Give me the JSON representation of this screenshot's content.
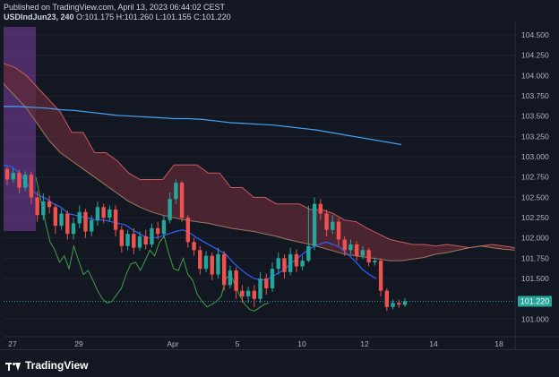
{
  "header": {
    "published": "Published on TradingView.com, April 13, 2023 06:44:02 CEST",
    "symbol": "USDIndJun23, 240",
    "ohlc": "O:101.175 H:101.260 L:101.155 C:101.220"
  },
  "footer": {
    "logo_text": "TradingView"
  },
  "colors": {
    "background": "#131722",
    "up": "#26a69a",
    "down": "#ef5350",
    "cloud_bear": "#5d2a35",
    "cloud_bull": "#1f4a45",
    "lagging_span": "#43a047",
    "conversion_line": "#2962ff",
    "ma_line": "#42a5f5",
    "highlight": "#7b3fa0"
  },
  "chart_data": {
    "type": "candlestick",
    "ylim": [
      100.85,
      104.6
    ],
    "y_ticks": [
      "104.500",
      "104.250",
      "104.000",
      "103.750",
      "103.500",
      "103.250",
      "103.000",
      "102.750",
      "102.500",
      "102.250",
      "102.000",
      "101.750",
      "101.500",
      "101.220",
      "101.000"
    ],
    "x_ticks": [
      "27",
      "29",
      "Apr",
      "5",
      "10",
      "12",
      "14",
      "18"
    ],
    "price_label": "101.220",
    "last_price": 101.22,
    "candles": [
      [
        102.85,
        102.72,
        102.88,
        102.65
      ],
      [
        102.72,
        102.8,
        102.86,
        102.68
      ],
      [
        102.8,
        102.62,
        102.84,
        102.55
      ],
      [
        102.62,
        102.78,
        102.82,
        102.58
      ],
      [
        102.78,
        102.5,
        102.82,
        102.42
      ],
      [
        102.5,
        102.28,
        102.58,
        102.2
      ],
      [
        102.28,
        102.45,
        102.55,
        102.22
      ],
      [
        102.45,
        102.38,
        102.52,
        102.3
      ],
      [
        102.38,
        102.15,
        102.42,
        102.05
      ],
      [
        102.15,
        102.3,
        102.36,
        102.1
      ],
      [
        102.3,
        102.05,
        102.34,
        101.98
      ],
      [
        102.05,
        102.18,
        102.25,
        101.98
      ],
      [
        102.18,
        102.32,
        102.4,
        102.12
      ],
      [
        102.32,
        102.08,
        102.36,
        102.0
      ],
      [
        102.08,
        102.22,
        102.28,
        102.02
      ],
      [
        102.22,
        102.38,
        102.45,
        102.15
      ],
      [
        102.38,
        102.25,
        102.42,
        102.18
      ],
      [
        102.25,
        102.35,
        102.4,
        102.2
      ],
      [
        102.35,
        102.1,
        102.4,
        102.02
      ],
      [
        102.1,
        101.9,
        102.15,
        101.82
      ],
      [
        101.9,
        102.05,
        102.1,
        101.85
      ],
      [
        102.05,
        101.88,
        102.12,
        101.8
      ],
      [
        101.88,
        102.02,
        102.08,
        101.84
      ],
      [
        102.02,
        101.92,
        102.1,
        101.86
      ],
      [
        101.92,
        102.12,
        102.18,
        101.88
      ],
      [
        102.12,
        102.05,
        102.2,
        101.98
      ],
      [
        102.05,
        102.22,
        102.28,
        102.0
      ],
      [
        102.22,
        102.48,
        102.56,
        102.18
      ],
      [
        102.48,
        102.68,
        102.72,
        102.42
      ],
      [
        102.68,
        102.25,
        102.7,
        102.2
      ],
      [
        102.25,
        101.95,
        102.28,
        101.88
      ],
      [
        101.95,
        101.85,
        102.0,
        101.78
      ],
      [
        101.85,
        101.62,
        101.9,
        101.55
      ],
      [
        101.62,
        101.78,
        101.84,
        101.58
      ],
      [
        101.78,
        101.55,
        101.82,
        101.48
      ],
      [
        101.55,
        101.8,
        101.88,
        101.5
      ],
      [
        101.8,
        101.42,
        101.84,
        101.35
      ],
      [
        101.42,
        101.6,
        101.66,
        101.38
      ],
      [
        101.6,
        101.35,
        101.64,
        101.25
      ],
      [
        101.35,
        101.28,
        101.42,
        101.2
      ],
      [
        101.28,
        101.35,
        101.4,
        101.2
      ],
      [
        101.35,
        101.25,
        101.42,
        101.15
      ],
      [
        101.25,
        101.5,
        101.58,
        101.2
      ],
      [
        101.5,
        101.38,
        101.56,
        101.3
      ],
      [
        101.38,
        101.62,
        101.7,
        101.34
      ],
      [
        101.62,
        101.75,
        101.82,
        101.55
      ],
      [
        101.75,
        101.58,
        101.8,
        101.5
      ],
      [
        101.58,
        101.8,
        101.88,
        101.54
      ],
      [
        101.8,
        101.65,
        101.86,
        101.58
      ],
      [
        101.65,
        101.72,
        101.78,
        101.6
      ],
      [
        101.72,
        101.9,
        102.4,
        101.7
      ],
      [
        101.9,
        102.42,
        102.5,
        101.85
      ],
      [
        102.42,
        102.3,
        102.48,
        102.22
      ],
      [
        102.3,
        102.1,
        102.35,
        102.02
      ],
      [
        102.1,
        102.2,
        102.28,
        102.05
      ],
      [
        102.2,
        101.98,
        102.24,
        101.9
      ],
      [
        101.98,
        101.85,
        102.02,
        101.78
      ],
      [
        101.85,
        101.92,
        101.98,
        101.8
      ],
      [
        101.92,
        101.78,
        101.96,
        101.72
      ],
      [
        101.78,
        101.85,
        101.9,
        101.74
      ],
      [
        101.85,
        101.7,
        101.88,
        101.65
      ],
      [
        101.7,
        101.72,
        101.76,
        101.66
      ],
      [
        101.72,
        101.35,
        101.75,
        101.28
      ],
      [
        101.35,
        101.15,
        101.38,
        101.1
      ],
      [
        101.15,
        101.2,
        101.24,
        101.12
      ],
      [
        101.2,
        101.18,
        101.24,
        101.14
      ],
      [
        101.175,
        101.22,
        101.26,
        101.155
      ]
    ],
    "lagging_span": [
      102.75,
      102.48,
      102.2,
      101.95,
      101.85,
      101.7,
      101.78,
      101.62,
      101.9,
      101.72,
      101.55,
      101.6,
      101.48,
      101.35,
      101.25,
      101.2,
      101.22,
      101.3,
      101.38,
      101.55,
      101.68,
      101.7,
      101.6,
      101.72,
      101.85,
      101.78,
      101.95,
      102.02,
      101.8,
      101.62,
      101.6,
      101.75,
      101.55,
      101.48,
      101.3,
      101.22,
      101.15,
      101.18,
      101.22,
      101.28,
      101.5,
      101.55,
      101.4,
      101.28,
      101.18,
      101.12,
      101.1,
      101.14,
      101.18,
      101.2
    ],
    "conversion_line": [
      102.9,
      102.88,
      102.82,
      102.7,
      102.58,
      102.52,
      102.48,
      102.42,
      102.38,
      102.3,
      102.28,
      102.26,
      102.24,
      102.22,
      102.22,
      102.2,
      102.18,
      102.16,
      102.1,
      102.05,
      102.0,
      102.0,
      102.02,
      102.05,
      102.08,
      102.1,
      102.06,
      102.0,
      101.95,
      101.9,
      101.85,
      101.8,
      101.7,
      101.62,
      101.55,
      101.5,
      101.48,
      101.5,
      101.55,
      101.6,
      101.68,
      101.75,
      101.82,
      101.88,
      101.92,
      101.95,
      101.92,
      101.88,
      101.8,
      101.72,
      101.62,
      101.55,
      101.5
    ],
    "ma_line": [
      103.62,
      103.62,
      103.61,
      103.6,
      103.58,
      103.57,
      103.55,
      103.53,
      103.51,
      103.5,
      103.49,
      103.48,
      103.47,
      103.47,
      103.46,
      103.44,
      103.42,
      103.41,
      103.4,
      103.39,
      103.37,
      103.35,
      103.33,
      103.3,
      103.27,
      103.24,
      103.21,
      103.18,
      103.15
    ],
    "cloud_top": [
      104.15,
      104.1,
      104.0,
      103.85,
      103.7,
      103.55,
      103.3,
      103.3,
      103.05,
      103.05,
      102.95,
      102.8,
      102.72,
      102.72,
      102.72,
      102.9,
      102.9,
      102.9,
      102.8,
      102.8,
      102.62,
      102.62,
      102.5,
      102.5,
      102.42,
      102.42,
      102.42,
      102.35,
      102.35,
      102.3,
      102.22,
      102.2,
      102.12,
      102.05,
      101.98,
      101.95,
      101.92,
      101.92,
      101.9,
      101.92,
      101.9,
      101.88,
      101.9,
      101.92,
      101.9,
      101.88
    ],
    "cloud_bottom": [
      103.9,
      103.75,
      103.6,
      103.4,
      103.2,
      103.05,
      102.95,
      102.85,
      102.75,
      102.65,
      102.55,
      102.45,
      102.38,
      102.32,
      102.28,
      102.25,
      102.22,
      102.2,
      102.18,
      102.15,
      102.12,
      102.1,
      102.08,
      102.05,
      102.02,
      101.98,
      101.95,
      101.92,
      101.88,
      101.84,
      101.8,
      101.78,
      101.76,
      101.74,
      101.72,
      101.72,
      101.74,
      101.76,
      101.8,
      101.82,
      101.85,
      101.88,
      101.9,
      101.88,
      101.86,
      101.85
    ]
  }
}
